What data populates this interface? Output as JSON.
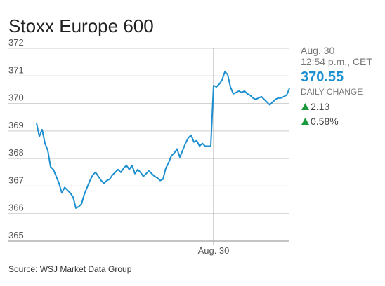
{
  "chart_data": {
    "type": "line",
    "title": "Stoxx Europe 600",
    "source": "Source: WSJ Market Data Group",
    "series": [
      {
        "name": "Stoxx Europe 600",
        "color": "#1b8fd0",
        "values": [
          369.28,
          368.8,
          369.05,
          368.55,
          368.3,
          367.7,
          367.6,
          367.35,
          367.1,
          366.75,
          366.95,
          366.85,
          366.75,
          366.6,
          366.2,
          366.25,
          366.35,
          366.7,
          366.95,
          367.2,
          367.4,
          367.5,
          367.35,
          367.2,
          367.1,
          367.2,
          367.25,
          367.4,
          367.5,
          367.6,
          367.5,
          367.65,
          367.75,
          367.6,
          367.75,
          367.45,
          367.6,
          367.5,
          367.35,
          367.45,
          367.55,
          367.45,
          367.35,
          367.3,
          367.2,
          367.25,
          367.65,
          367.85,
          368.1,
          368.2,
          368.35,
          368.05,
          368.3,
          368.55,
          368.75,
          368.85,
          368.6,
          368.65,
          368.45,
          368.55,
          368.45,
          368.45,
          368.45,
          370.65,
          370.6,
          370.7,
          370.85,
          371.15,
          371.05,
          370.6,
          370.35,
          370.4,
          370.45,
          370.4,
          370.45,
          370.35,
          370.3,
          370.2,
          370.15,
          370.2,
          370.25,
          370.15,
          370.05,
          369.95,
          370.05,
          370.15,
          370.2,
          370.2,
          370.25,
          370.3,
          370.55
        ]
      }
    ],
    "xlim": [
      0,
      90
    ],
    "xticks": [
      {
        "value": 63,
        "label": "Aug. 30"
      }
    ],
    "ylim": [
      365,
      372
    ],
    "yticks": [
      372,
      371,
      370,
      369,
      368,
      367,
      366,
      365
    ],
    "grid": true,
    "summary": {
      "date": "Aug. 30",
      "time": "12:54 p.m., CET",
      "last": 370.55,
      "change_label": "DAILY CHANGE",
      "change": 2.13,
      "change_pct": "0.58%",
      "up_color": "#1a9a3c"
    }
  }
}
